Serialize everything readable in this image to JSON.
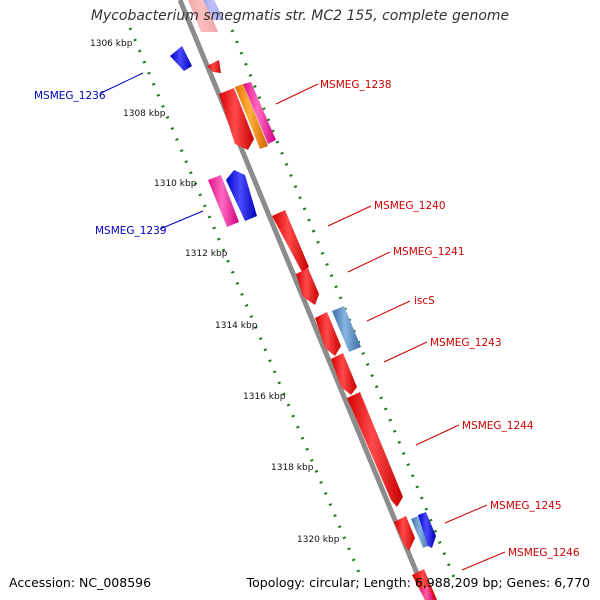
{
  "title": "Mycobacterium smegmatis str. MC2 155, complete genome",
  "accession": "Accession: NC_008596",
  "summary": "Topology: circular; Length: 6,988,209 bp; Genes: 6,770",
  "colors": {
    "backbone": "#8c8c8c",
    "tick": "#1a7a1a",
    "forward_label": "#cc0000",
    "reverse_label": "#0000bb"
  },
  "scale_labels": [
    "1306 kbp",
    "1308 kbp",
    "1310 kbp",
    "1312 kbp",
    "1314 kbp",
    "1316 kbp",
    "1318 kbp",
    "1320 kbp"
  ],
  "gene_labels": {
    "msmeg_1236": "MSMEG_1236",
    "msmeg_1238": "MSMEG_1238",
    "msmeg_1239": "MSMEG_1239",
    "msmeg_1240": "MSMEG_1240",
    "msmeg_1241": "MSMEG_1241",
    "iscs": "iscS",
    "msmeg_1243": "MSMEG_1243",
    "msmeg_1244": "MSMEG_1244",
    "msmeg_1245": "MSMEG_1245",
    "msmeg_1246": "MSMEG_1246"
  }
}
